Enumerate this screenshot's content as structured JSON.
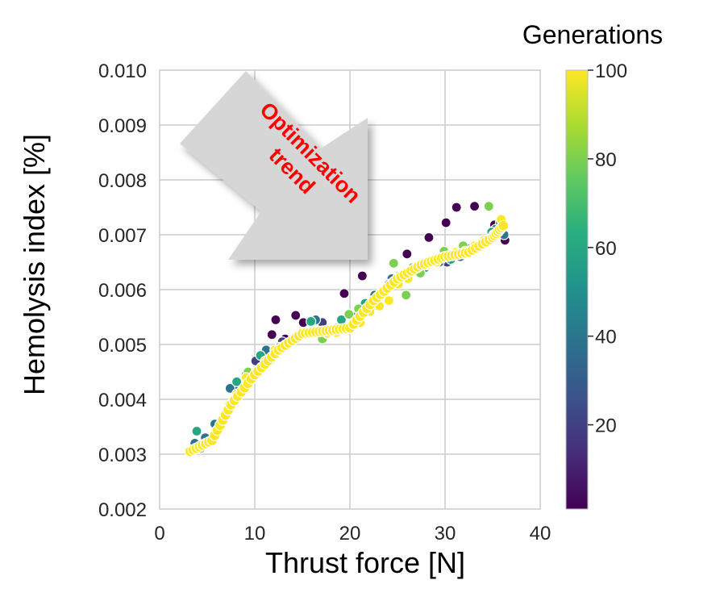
{
  "chart_data": {
    "type": "scatter",
    "title": "",
    "xlabel": "Thrust force [N]",
    "ylabel": "Hemolysis index [%]",
    "xlim": [
      0,
      40
    ],
    "ylim": [
      0.002,
      0.01
    ],
    "x_ticks": [
      "0",
      "10",
      "20",
      "30",
      "40"
    ],
    "y_ticks": [
      "0.002",
      "0.003",
      "0.004",
      "0.005",
      "0.006",
      "0.007",
      "0.008",
      "0.009",
      "0.010"
    ],
    "grid": true,
    "colorbar": {
      "title": "Generations",
      "range": [
        1,
        100
      ],
      "ticks": [
        "20",
        "40",
        "60",
        "80",
        "100"
      ],
      "colormap": "viridis"
    },
    "annotation": {
      "text_lines": [
        "Optimization",
        "trend"
      ],
      "color": "#ff0000",
      "arrow_color": "#d4d4d4",
      "direction": "down-right"
    },
    "trend": [
      {
        "x": 3.2,
        "y": 0.00305
      },
      {
        "x": 5.5,
        "y": 0.00325
      },
      {
        "x": 7.5,
        "y": 0.0039
      },
      {
        "x": 10.0,
        "y": 0.00445
      },
      {
        "x": 12.5,
        "y": 0.0049
      },
      {
        "x": 15.0,
        "y": 0.0052
      },
      {
        "x": 17.5,
        "y": 0.00525
      },
      {
        "x": 20.0,
        "y": 0.0053
      },
      {
        "x": 22.5,
        "y": 0.0058
      },
      {
        "x": 25.0,
        "y": 0.0062
      },
      {
        "x": 27.5,
        "y": 0.00645
      },
      {
        "x": 30.0,
        "y": 0.0066
      },
      {
        "x": 32.5,
        "y": 0.00668
      },
      {
        "x": 35.0,
        "y": 0.00695
      },
      {
        "x": 36.3,
        "y": 0.0072
      }
    ],
    "series": [
      {
        "generation": 1,
        "points": [
          [
            12.2,
            0.00545
          ],
          [
            11.8,
            0.00518
          ],
          [
            14.3,
            0.00553
          ],
          [
            19.4,
            0.00593
          ],
          [
            21.3,
            0.00625
          ],
          [
            26.0,
            0.00665
          ],
          [
            28.3,
            0.00695
          ],
          [
            29.2,
            0.00655
          ],
          [
            30.1,
            0.00722
          ],
          [
            31.2,
            0.0075
          ],
          [
            33.1,
            0.00752
          ],
          [
            35.2,
            0.00718
          ],
          [
            36.3,
            0.0069
          ],
          [
            15.1,
            0.0054
          ],
          [
            13.2,
            0.0051
          ]
        ]
      },
      {
        "generation": 20,
        "points": [
          [
            4.0,
            0.0031
          ],
          [
            6.0,
            0.0034
          ],
          [
            8.3,
            0.00425
          ],
          [
            10.1,
            0.0047
          ],
          [
            12.9,
            0.00505
          ],
          [
            17.1,
            0.0054
          ],
          [
            20.4,
            0.0055
          ],
          [
            23.3,
            0.00595
          ],
          [
            25.2,
            0.00625
          ],
          [
            28.1,
            0.00645
          ],
          [
            30.2,
            0.0065
          ],
          [
            32.1,
            0.00672
          ],
          [
            34.2,
            0.0069
          ]
        ]
      },
      {
        "generation": 40,
        "points": [
          [
            3.7,
            0.0032
          ],
          [
            4.8,
            0.0033
          ],
          [
            5.8,
            0.00355
          ],
          [
            7.4,
            0.0042
          ],
          [
            9.1,
            0.00445
          ],
          [
            11.2,
            0.0049
          ],
          [
            14.1,
            0.0051
          ],
          [
            16.4,
            0.00545
          ],
          [
            18.6,
            0.0053
          ],
          [
            21.1,
            0.0055
          ],
          [
            22.6,
            0.0059
          ],
          [
            24.4,
            0.0062
          ],
          [
            26.6,
            0.0064
          ],
          [
            29.4,
            0.0065
          ],
          [
            31.6,
            0.0066
          ],
          [
            33.6,
            0.0068
          ],
          [
            35.3,
            0.0071
          ],
          [
            36.2,
            0.007
          ]
        ]
      },
      {
        "generation": 60,
        "points": [
          [
            3.9,
            0.00342
          ],
          [
            6.6,
            0.0036
          ],
          [
            8.1,
            0.00432
          ],
          [
            10.6,
            0.0048
          ],
          [
            12.6,
            0.00495
          ],
          [
            15.9,
            0.00542
          ],
          [
            19.1,
            0.00545
          ],
          [
            21.6,
            0.00575
          ],
          [
            24.1,
            0.0061
          ],
          [
            26.1,
            0.0063
          ],
          [
            27.9,
            0.0064
          ],
          [
            30.6,
            0.00655
          ],
          [
            32.6,
            0.00675
          ],
          [
            34.9,
            0.00705
          ],
          [
            35.8,
            0.00722
          ]
        ]
      },
      {
        "generation": 80,
        "points": [
          [
            4.3,
            0.0031
          ],
          [
            6.9,
            0.0037
          ],
          [
            9.3,
            0.0045
          ],
          [
            11.6,
            0.0047
          ],
          [
            14.6,
            0.00515
          ],
          [
            17.1,
            0.0051
          ],
          [
            19.9,
            0.00555
          ],
          [
            20.9,
            0.00565
          ],
          [
            22.9,
            0.0057
          ],
          [
            24.6,
            0.00648
          ],
          [
            25.9,
            0.0059
          ],
          [
            27.4,
            0.0063
          ],
          [
            29.9,
            0.0067
          ],
          [
            31.9,
            0.0068
          ],
          [
            34.6,
            0.00752
          ],
          [
            35.6,
            0.00705
          ]
        ]
      },
      {
        "generation": 100,
        "points": [
          [
            3.3,
            0.00305
          ],
          [
            4.1,
            0.00312
          ],
          [
            5.1,
            0.0032
          ],
          [
            5.9,
            0.0034
          ],
          [
            6.6,
            0.0036
          ],
          [
            7.3,
            0.0039
          ],
          [
            8.1,
            0.0041
          ],
          [
            9.1,
            0.0044
          ],
          [
            10.1,
            0.0045
          ],
          [
            11.1,
            0.0047
          ],
          [
            12.1,
            0.0049
          ],
          [
            13.1,
            0.00495
          ],
          [
            14.1,
            0.0051
          ],
          [
            15.1,
            0.00522
          ],
          [
            16.1,
            0.0052
          ],
          [
            17.6,
            0.0052
          ],
          [
            18.6,
            0.00522
          ],
          [
            20.1,
            0.0053
          ],
          [
            21.1,
            0.0054
          ],
          [
            22.1,
            0.0056
          ],
          [
            23.1,
            0.0057
          ],
          [
            24.1,
            0.0058
          ],
          [
            25.1,
            0.0061
          ],
          [
            26.1,
            0.0062
          ],
          [
            27.1,
            0.0064
          ],
          [
            28.1,
            0.00645
          ],
          [
            29.1,
            0.0065
          ],
          [
            30.1,
            0.0066
          ],
          [
            31.1,
            0.00668
          ],
          [
            32.1,
            0.0067
          ],
          [
            33.1,
            0.0068
          ],
          [
            34.1,
            0.0069
          ],
          [
            35.1,
            0.007
          ],
          [
            35.9,
            0.00728
          ]
        ]
      }
    ]
  }
}
